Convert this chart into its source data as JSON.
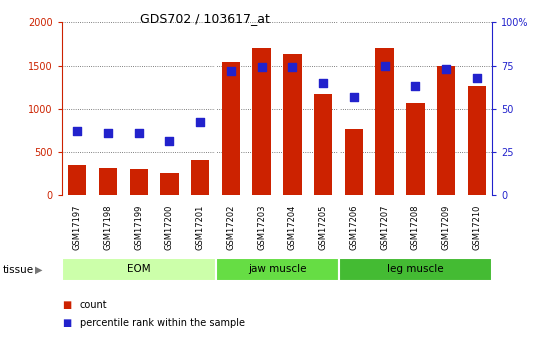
{
  "title": "GDS702 / 103617_at",
  "samples": [
    "GSM17197",
    "GSM17198",
    "GSM17199",
    "GSM17200",
    "GSM17201",
    "GSM17202",
    "GSM17203",
    "GSM17204",
    "GSM17205",
    "GSM17206",
    "GSM17207",
    "GSM17208",
    "GSM17209",
    "GSM17210"
  ],
  "counts": [
    350,
    310,
    305,
    250,
    410,
    1540,
    1700,
    1630,
    1170,
    760,
    1700,
    1070,
    1490,
    1260
  ],
  "percentiles": [
    37,
    36,
    36,
    31,
    42,
    72,
    74,
    74,
    65,
    57,
    75,
    63,
    73,
    68
  ],
  "groups": [
    {
      "label": "EOM",
      "start": 0,
      "end": 5,
      "color": "#ccffaa"
    },
    {
      "label": "jaw muscle",
      "start": 5,
      "end": 9,
      "color": "#66dd44"
    },
    {
      "label": "leg muscle",
      "start": 9,
      "end": 14,
      "color": "#44bb33"
    }
  ],
  "bar_color": "#cc2200",
  "dot_color": "#2222cc",
  "ylim_left": [
    0,
    2000
  ],
  "ylim_right": [
    0,
    100
  ],
  "yticks_left": [
    0,
    500,
    1000,
    1500,
    2000
  ],
  "yticks_right": [
    0,
    25,
    50,
    75,
    100
  ],
  "xtick_bg_color": "#bbbbbb",
  "tissue_label": "tissue",
  "legend_count": "count",
  "legend_percentile": "percentile rank within the sample"
}
